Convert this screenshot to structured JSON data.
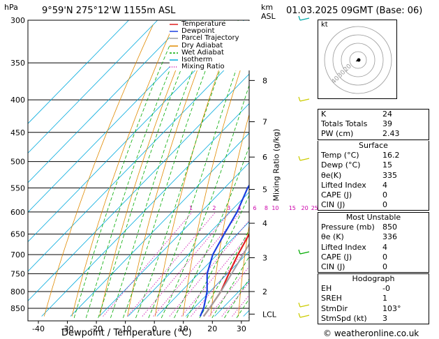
{
  "header": {
    "hpa_unit": "hPa",
    "location": "9°59'N 275°12'W 1155m ASL",
    "km_unit": "km",
    "asl_unit": "ASL",
    "datetime": "01.03.2025 09GMT (Base: 06)"
  },
  "chart_data": {
    "type": "line",
    "title": "9°59'N 275°12'W 1155m ASL",
    "xlabel": "Dewpoint / Temperature (°C)",
    "ylabel": "hPa",
    "secondary_ylabel": "Mixing Ratio (g/kg)",
    "xlim": [
      -40,
      35
    ],
    "ylim": [
      875,
      300
    ],
    "x_ticks": [
      -40,
      -30,
      -20,
      -10,
      0,
      10,
      20,
      30
    ],
    "pressure_ticks": [
      300,
      350,
      400,
      450,
      500,
      550,
      600,
      650,
      700,
      750,
      800,
      850
    ],
    "km_ticks": [
      {
        "label": "8",
        "p": 373
      },
      {
        "label": "7",
        "p": 433
      },
      {
        "label": "6",
        "p": 492
      },
      {
        "label": "5",
        "p": 553
      },
      {
        "label": "4",
        "p": 625
      },
      {
        "label": "3",
        "p": 708
      },
      {
        "label": "2",
        "p": 800
      },
      {
        "label": "LCL",
        "p": 868
      }
    ],
    "mixing_ratio_labels": [
      "1",
      "2",
      "3",
      "4",
      "6",
      "8",
      "10",
      "15",
      "20",
      "25"
    ],
    "legend": [
      "Temperature",
      "Dewpoint",
      "Parcel Trajectory",
      "Dry Adiabat",
      "Wet Adiabat",
      "Isotherm",
      "Mixing Ratio"
    ],
    "legend_position": "top-left",
    "series": [
      {
        "name": "Temperature",
        "color": "#e02020",
        "points": [
          [
            16.2,
            875
          ],
          [
            15.5,
            850
          ],
          [
            13.8,
            800
          ],
          [
            10.5,
            750
          ],
          [
            7.2,
            700
          ],
          [
            4.2,
            650
          ],
          [
            0.8,
            600
          ],
          [
            -3,
            550
          ],
          [
            -7.5,
            500
          ],
          [
            -12,
            450
          ],
          [
            -17.5,
            400
          ],
          [
            -24,
            350
          ],
          [
            -31.5,
            300
          ]
        ]
      },
      {
        "name": "Dewpoint",
        "color": "#1a3fe0",
        "points": [
          [
            15,
            875
          ],
          [
            13.5,
            850
          ],
          [
            9,
            800
          ],
          [
            3,
            750
          ],
          [
            -1.5,
            700
          ],
          [
            -4.5,
            650
          ],
          [
            -7.5,
            600
          ],
          [
            -12,
            550
          ],
          [
            -15,
            500
          ],
          [
            -18.5,
            450
          ],
          [
            -28,
            400
          ],
          [
            -40,
            350
          ],
          [
            -49,
            300
          ]
        ]
      },
      {
        "name": "Parcel Trajectory",
        "color": "#a0a0a0",
        "points": [
          [
            16.2,
            875
          ],
          [
            15.5,
            850
          ],
          [
            13.8,
            800
          ],
          [
            11.5,
            750
          ],
          [
            9,
            700
          ],
          [
            6.2,
            650
          ],
          [
            3,
            600
          ],
          [
            -0.6,
            550
          ],
          [
            -4.8,
            500
          ],
          [
            -9.8,
            450
          ],
          [
            -15.5,
            400
          ],
          [
            -22.5,
            350
          ],
          [
            -31,
            300
          ]
        ]
      }
    ]
  },
  "hodograph": {
    "label": "kt",
    "ring_labels": [
      "20",
      "30",
      "40"
    ]
  },
  "indices": {
    "rows": [
      {
        "label": "K",
        "value": "24"
      },
      {
        "label": "Totals Totals",
        "value": "39"
      },
      {
        "label": "PW (cm)",
        "value": "2.43"
      }
    ]
  },
  "surface": {
    "title": "Surface",
    "rows": [
      {
        "label": "Temp (°C)",
        "value": "16.2"
      },
      {
        "label": "Dewp (°C)",
        "value": "15"
      },
      {
        "label": "θe(K)",
        "value": "335"
      },
      {
        "label": "Lifted Index",
        "value": "4"
      },
      {
        "label": "CAPE (J)",
        "value": "0"
      },
      {
        "label": "CIN (J)",
        "value": "0"
      }
    ]
  },
  "most_unstable": {
    "title": "Most Unstable",
    "rows": [
      {
        "label": "Pressure (mb)",
        "value": "850"
      },
      {
        "label": "θe (K)",
        "value": "336"
      },
      {
        "label": "Lifted Index",
        "value": "4"
      },
      {
        "label": "CAPE (J)",
        "value": "0"
      },
      {
        "label": "CIN (J)",
        "value": "0"
      }
    ]
  },
  "hodograph_table": {
    "title": "Hodograph",
    "rows": [
      {
        "label": "EH",
        "value": "-0"
      },
      {
        "label": "SREH",
        "value": "1"
      },
      {
        "label": "StmDir",
        "value": "103°"
      },
      {
        "label": "StmSpd (kt)",
        "value": "3"
      }
    ]
  },
  "footer": {
    "copyright": "© weatheronline.co.uk"
  },
  "colors": {
    "temperature": "#e02020",
    "dewpoint": "#1a3fe0",
    "parcel": "#a0a0a0",
    "dry_adiabat": "#e08a00",
    "wet_adiabat": "#00aa00",
    "isotherm": "#00aadd",
    "mixing_ratio": "#cc00aa"
  }
}
